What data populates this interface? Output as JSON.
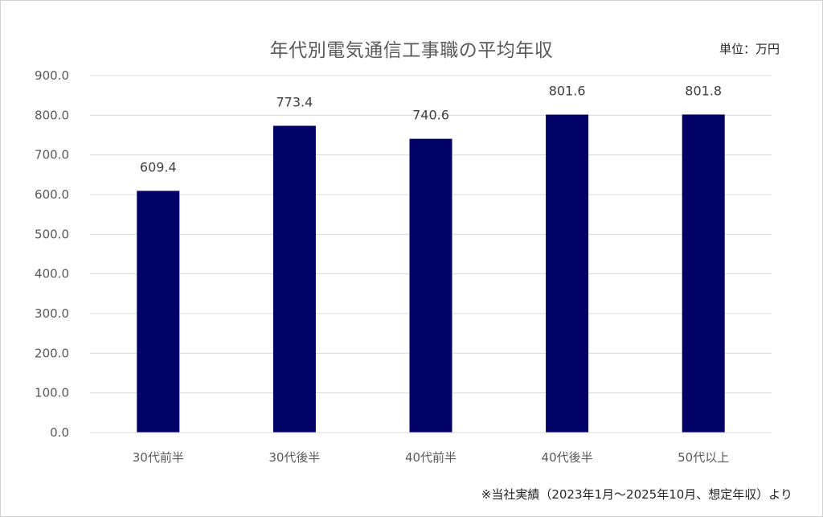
{
  "unit": "単位：万円",
  "footnote": "※当社実績（2023年1月～2025年10月、想定年収）より",
  "chart_data": {
    "type": "bar",
    "title": "年代別電気通信工事職の平均年収",
    "xlabel": "",
    "ylabel": "",
    "categories": [
      "30代前半",
      "30代後半",
      "40代前半",
      "40代後半",
      "50代以上"
    ],
    "values": [
      609.4,
      773.4,
      740.6,
      801.6,
      801.8
    ],
    "value_labels": [
      "609.4",
      "773.4",
      "740.6",
      "801.6",
      "801.8"
    ],
    "ylim": [
      0,
      900
    ],
    "yticks": [
      0,
      100,
      200,
      300,
      400,
      500,
      600,
      700,
      800,
      900
    ],
    "ytick_labels": [
      "0.0",
      "100.0",
      "200.0",
      "300.0",
      "400.0",
      "500.0",
      "600.0",
      "700.0",
      "800.0",
      "900.0"
    ],
    "grid": true,
    "legend": "none",
    "bar_color": "#000066",
    "grid_color": "#d9d9d9"
  }
}
